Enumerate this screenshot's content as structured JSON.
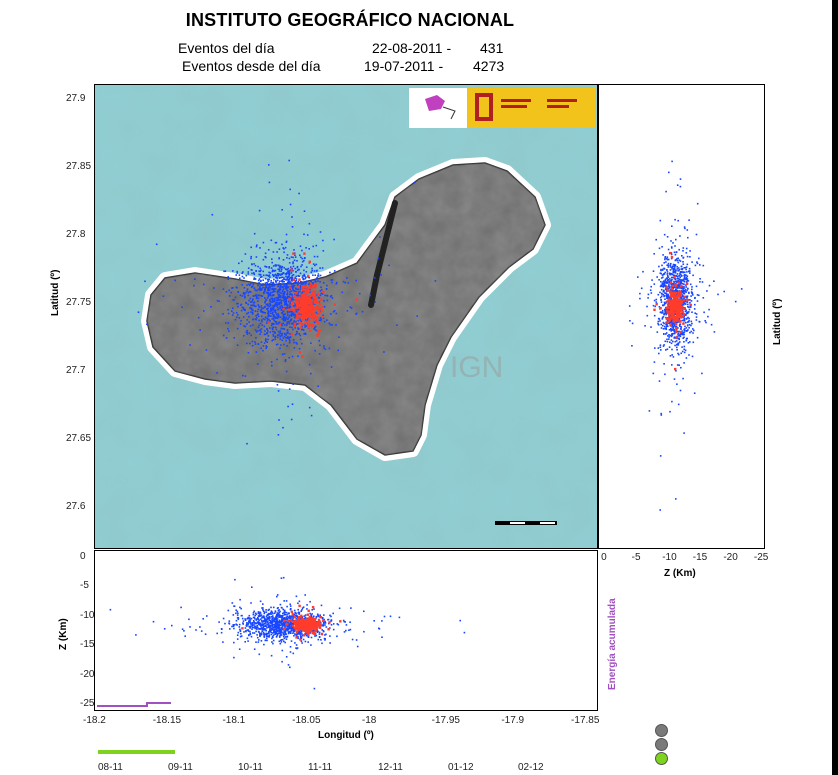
{
  "header": {
    "title": "INSTITUTO GEOGRÁFICO NACIONAL",
    "events_day_label": "Eventos del día",
    "events_day_date": "22-08-2011 -",
    "events_day_count": "431",
    "events_since_label": "Eventos desde del día",
    "events_since_date": "19-07-2011 -",
    "events_since_count": "4273"
  },
  "watermark": "IGN",
  "colors": {
    "sea": "#8fcfd4",
    "island": "#6e6e6e",
    "shore": "#e8eee9",
    "events_since": "#1846ff",
    "events_day": "#ff3c2c",
    "energy": "#a050c0",
    "timebar": "#7ed321",
    "status_grey": "#7a7a7a",
    "status_green": "#7ed321"
  },
  "icons": [
    "ign-logo",
    "spain-coat-of-arms",
    "gobierno-de-espana-logo",
    "status-light"
  ],
  "chart_data": [
    {
      "type": "scatter",
      "panel": "map",
      "xlabel": "",
      "ylabel": "Latitud (º)",
      "xlim": [
        -18.2,
        -17.84
      ],
      "ylim": [
        27.57,
        27.91
      ],
      "yticks": [
        "27.9",
        "27.85",
        "27.8",
        "27.75",
        "27.7",
        "27.65",
        "27.6"
      ],
      "yticks_values": [
        27.9,
        27.85,
        27.8,
        27.75,
        27.7,
        27.65,
        27.6
      ],
      "series": [
        {
          "center": [
            -18.065,
            27.752
          ],
          "spread": [
            0.016,
            0.016
          ],
          "count": 1500
        },
        {
          "center": [
            -18.048,
            27.747
          ],
          "spread": [
            0.005,
            0.007
          ],
          "count": 300
        }
      ]
    },
    {
      "type": "scatter",
      "panel": "depth-latitude",
      "xlabel": "Z (Km)",
      "ylabel": "Latitud (º)",
      "xlim": [
        1,
        -26
      ],
      "ylim": [
        27.57,
        27.91
      ],
      "xticks": [
        "0",
        "-5",
        "-10",
        "-15",
        "-20",
        "-25"
      ],
      "xticks_values": [
        0,
        -5,
        -10,
        -15,
        -20,
        -25
      ],
      "series": [
        {
          "center": [
            -11.5,
            27.752
          ],
          "spread": [
            1.3,
            0.016
          ],
          "count": 1200
        },
        {
          "center": [
            -11.5,
            27.747
          ],
          "spread": [
            0.6,
            0.007
          ],
          "count": 250
        }
      ]
    },
    {
      "type": "scatter",
      "panel": "longitude-depth",
      "xlabel": "Longitud (º)",
      "ylabel": "Z (Km)",
      "xlim": [
        -18.2,
        -17.84
      ],
      "ylim": [
        -26,
        1
      ],
      "xticks": [
        "-18.2",
        "-18.15",
        "-18.1",
        "-18.05",
        "-18",
        "-17.95",
        "-17.9",
        "-17.85"
      ],
      "xticks_values": [
        -18.2,
        -18.15,
        -18.1,
        -18.05,
        -18,
        -17.95,
        -17.9,
        -17.85
      ],
      "yticks": [
        "0",
        "-5",
        "-10",
        "-15",
        "-20",
        "-25"
      ],
      "yticks_values": [
        0,
        -5,
        -10,
        -15,
        -20,
        -25
      ],
      "series": [
        {
          "center": [
            -18.065,
            -11.5
          ],
          "spread": [
            0.016,
            1.3
          ],
          "count": 1200
        },
        {
          "center": [
            -18.048,
            -11.5
          ],
          "spread": [
            0.005,
            0.6
          ],
          "count": 250
        }
      ]
    }
  ],
  "energy": {
    "label": "Energía acumulada"
  },
  "timeline": {
    "labels": [
      "08-11",
      "09-11",
      "10-11",
      "11-11",
      "12-11",
      "01-12",
      "02-12"
    ],
    "progress": 0.15
  },
  "status_lights": [
    "grey",
    "grey",
    "green"
  ]
}
